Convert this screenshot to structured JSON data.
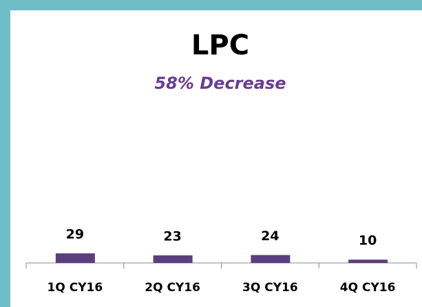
{
  "chart_data": {
    "type": "bar",
    "title": "LPC",
    "subtitle": "58% Decrease",
    "categories": [
      "1Q CY16",
      "2Q CY16",
      "3Q CY16",
      "4Q CY16"
    ],
    "values": [
      29,
      23,
      24,
      10
    ],
    "color": "#5b3f7d"
  }
}
